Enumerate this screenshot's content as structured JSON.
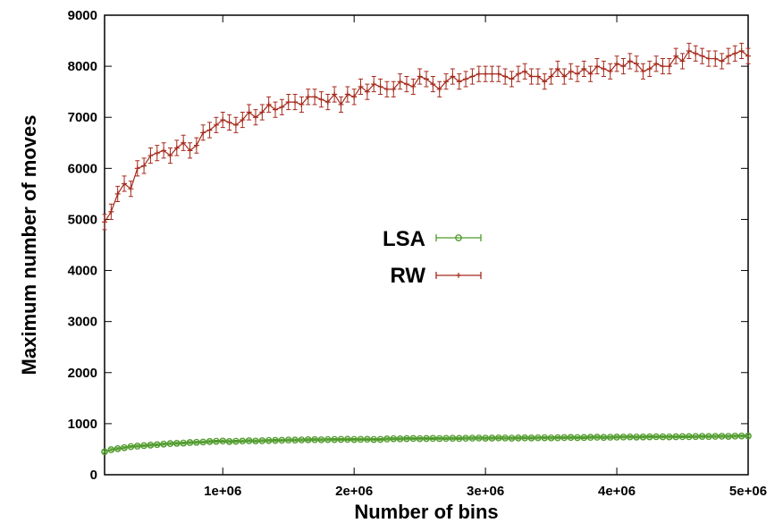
{
  "chart_data": {
    "type": "line",
    "xlabel": "Number of bins",
    "ylabel": "Maximum number of moves",
    "xlim": [
      100000,
      5000000
    ],
    "ylim": [
      0,
      9000
    ],
    "x_ticks": [
      {
        "value": 1000000,
        "label": "1e+06"
      },
      {
        "value": 2000000,
        "label": "2e+06"
      },
      {
        "value": 3000000,
        "label": "3e+06"
      },
      {
        "value": 4000000,
        "label": "4e+06"
      },
      {
        "value": 5000000,
        "label": "5e+06"
      }
    ],
    "y_ticks": [
      {
        "value": 0,
        "label": "0"
      },
      {
        "value": 1000,
        "label": "1000"
      },
      {
        "value": 2000,
        "label": "2000"
      },
      {
        "value": 3000,
        "label": "3000"
      },
      {
        "value": 4000,
        "label": "4000"
      },
      {
        "value": 5000,
        "label": "5000"
      },
      {
        "value": 6000,
        "label": "6000"
      },
      {
        "value": 7000,
        "label": "7000"
      },
      {
        "value": 8000,
        "label": "8000"
      },
      {
        "value": 9000,
        "label": "9000"
      }
    ],
    "grid": false,
    "legend_position": "center",
    "x": [
      100000,
      150000,
      200000,
      250000,
      300000,
      350000,
      400000,
      450000,
      500000,
      550000,
      600000,
      650000,
      700000,
      750000,
      800000,
      850000,
      900000,
      950000,
      1000000,
      1050000,
      1100000,
      1150000,
      1200000,
      1250000,
      1300000,
      1350000,
      1400000,
      1450000,
      1500000,
      1550000,
      1600000,
      1650000,
      1700000,
      1750000,
      1800000,
      1850000,
      1900000,
      1950000,
      2000000,
      2050000,
      2100000,
      2150000,
      2200000,
      2250000,
      2300000,
      2350000,
      2400000,
      2450000,
      2500000,
      2550000,
      2600000,
      2650000,
      2700000,
      2750000,
      2800000,
      2850000,
      2900000,
      2950000,
      3000000,
      3050000,
      3100000,
      3150000,
      3200000,
      3250000,
      3300000,
      3350000,
      3400000,
      3450000,
      3500000,
      3550000,
      3600000,
      3650000,
      3700000,
      3750000,
      3800000,
      3850000,
      3900000,
      3950000,
      4000000,
      4050000,
      4100000,
      4150000,
      4200000,
      4250000,
      4300000,
      4350000,
      4400000,
      4450000,
      4500000,
      4550000,
      4600000,
      4650000,
      4700000,
      4750000,
      4800000,
      4850000,
      4900000,
      4950000,
      5000000
    ],
    "series": [
      {
        "name": "LSA",
        "color": "#4e9a2a",
        "marker": "circle",
        "values": [
          450,
          490,
          510,
          530,
          550,
          560,
          570,
          580,
          590,
          600,
          610,
          615,
          620,
          630,
          635,
          640,
          650,
          655,
          660,
          650,
          655,
          660,
          665,
          660,
          665,
          670,
          672,
          675,
          680,
          678,
          682,
          685,
          687,
          684,
          688,
          690,
          692,
          694,
          690,
          693,
          695,
          690,
          692,
          700,
          705,
          702,
          707,
          710,
          706,
          709,
          712,
          708,
          712,
          714,
          711,
          715,
          717,
          719,
          716,
          718,
          721,
          719,
          716,
          720,
          722,
          720,
          723,
          725,
          721,
          724,
          728,
          731,
          727,
          729,
          733,
          735,
          731,
          734,
          737,
          739,
          741,
          738,
          740,
          742,
          745,
          743,
          741,
          744,
          747,
          746,
          749,
          751,
          748,
          752,
          754,
          751,
          756,
          758,
          760
        ],
        "errors": [
          20,
          20,
          20,
          20,
          20,
          20,
          20,
          20,
          20,
          20,
          20,
          20,
          20,
          20,
          20,
          20,
          20,
          20,
          20,
          20,
          20,
          20,
          20,
          20,
          20,
          20,
          20,
          20,
          20,
          20,
          20,
          20,
          20,
          20,
          20,
          20,
          20,
          20,
          20,
          20,
          20,
          20,
          20,
          20,
          20,
          20,
          20,
          20,
          20,
          20,
          20,
          20,
          20,
          20,
          20,
          20,
          20,
          20,
          20,
          20,
          20,
          20,
          20,
          20,
          20,
          20,
          20,
          20,
          20,
          20,
          20,
          20,
          20,
          20,
          20,
          20,
          20,
          20,
          20,
          20,
          20,
          20,
          20,
          20,
          20,
          20,
          20,
          20,
          20,
          20,
          20,
          20,
          20,
          20,
          20,
          20,
          20,
          20,
          20
        ]
      },
      {
        "name": "RW",
        "color": "#a52a1c",
        "marker": "plus",
        "values": [
          4950,
          5150,
          5500,
          5700,
          5600,
          6000,
          6050,
          6250,
          6300,
          6350,
          6250,
          6400,
          6500,
          6350,
          6450,
          6700,
          6750,
          6850,
          6950,
          6900,
          6850,
          6950,
          7100,
          7000,
          7100,
          7250,
          7150,
          7200,
          7300,
          7300,
          7250,
          7400,
          7400,
          7350,
          7300,
          7450,
          7250,
          7450,
          7400,
          7600,
          7500,
          7650,
          7600,
          7550,
          7550,
          7700,
          7650,
          7600,
          7800,
          7750,
          7650,
          7550,
          7700,
          7800,
          7700,
          7750,
          7800,
          7850,
          7850,
          7850,
          7850,
          7800,
          7750,
          7850,
          7900,
          7800,
          7800,
          7700,
          7800,
          7950,
          7800,
          7900,
          7850,
          7950,
          7850,
          8000,
          7950,
          7900,
          8050,
          8000,
          8100,
          8050,
          7900,
          7950,
          8050,
          8000,
          8000,
          8200,
          8100,
          8300,
          8250,
          8200,
          8150,
          8150,
          8100,
          8200,
          8250,
          8300,
          8200
        ],
        "errors": [
          150,
          150,
          150,
          150,
          150,
          150,
          150,
          150,
          150,
          150,
          150,
          150,
          150,
          150,
          150,
          150,
          150,
          150,
          150,
          150,
          150,
          150,
          150,
          150,
          150,
          150,
          150,
          150,
          150,
          150,
          150,
          150,
          150,
          150,
          150,
          150,
          150,
          150,
          150,
          150,
          150,
          150,
          150,
          150,
          150,
          150,
          150,
          150,
          150,
          150,
          150,
          150,
          150,
          150,
          150,
          150,
          150,
          150,
          150,
          150,
          150,
          150,
          150,
          150,
          150,
          150,
          150,
          150,
          150,
          150,
          150,
          150,
          150,
          150,
          150,
          150,
          150,
          150,
          150,
          150,
          150,
          150,
          150,
          150,
          150,
          150,
          150,
          150,
          150,
          150,
          150,
          150,
          150,
          150,
          150,
          150,
          150,
          150,
          150
        ]
      }
    ]
  }
}
